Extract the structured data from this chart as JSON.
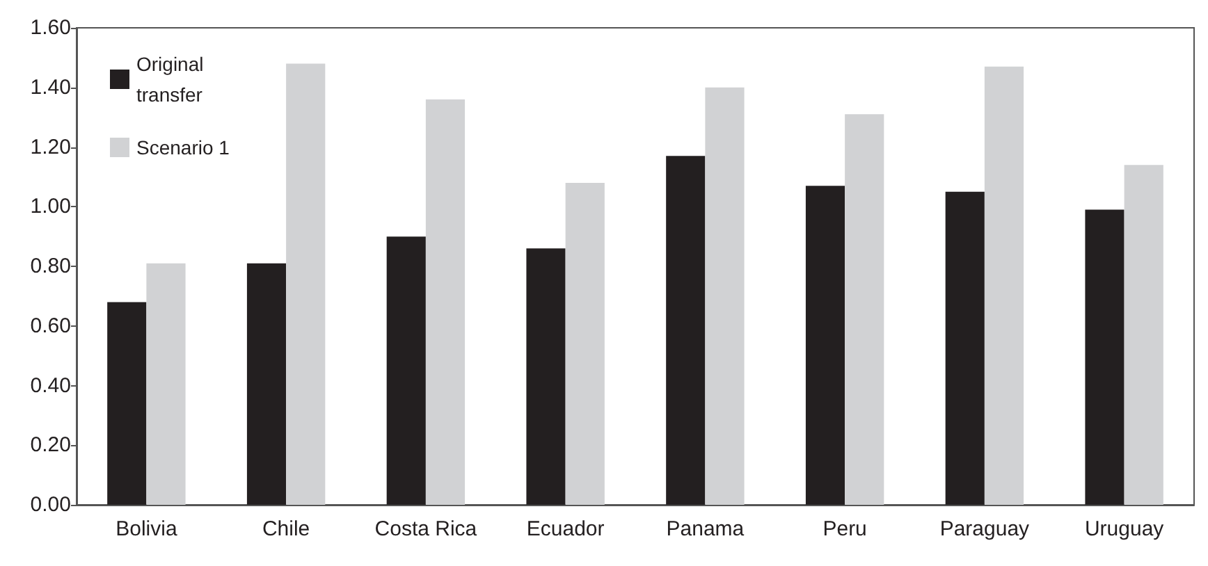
{
  "chart_data": {
    "type": "bar",
    "categories": [
      "Bolivia",
      "Chile",
      "Costa Rica",
      "Ecuador",
      "Panama",
      "Peru",
      "Paraguay",
      "Uruguay"
    ],
    "series": [
      {
        "name": "Original transfer",
        "color": "#231f20",
        "values": [
          0.68,
          0.81,
          0.9,
          0.86,
          1.17,
          1.07,
          1.05,
          0.99
        ]
      },
      {
        "name": "Scenario 1",
        "color": "#d1d2d4",
        "values": [
          0.81,
          1.48,
          1.36,
          1.08,
          1.4,
          1.31,
          1.47,
          1.14
        ]
      }
    ],
    "ylim": [
      0,
      1.6
    ],
    "yticks": [
      {
        "value": 0,
        "label": "0.00"
      },
      {
        "value": 0.2,
        "label": "0.20"
      },
      {
        "value": 0.4,
        "label": "0.40"
      },
      {
        "value": 0.6,
        "label": "0.60"
      },
      {
        "value": 0.8,
        "label": "0.80"
      },
      {
        "value": 1.0,
        "label": "1.00"
      },
      {
        "value": 1.2,
        "label": "1.20"
      },
      {
        "value": 1.4,
        "label": "1.40"
      },
      {
        "value": 1.6,
        "label": "1.60"
      }
    ],
    "grid": false,
    "legend": "top left"
  }
}
